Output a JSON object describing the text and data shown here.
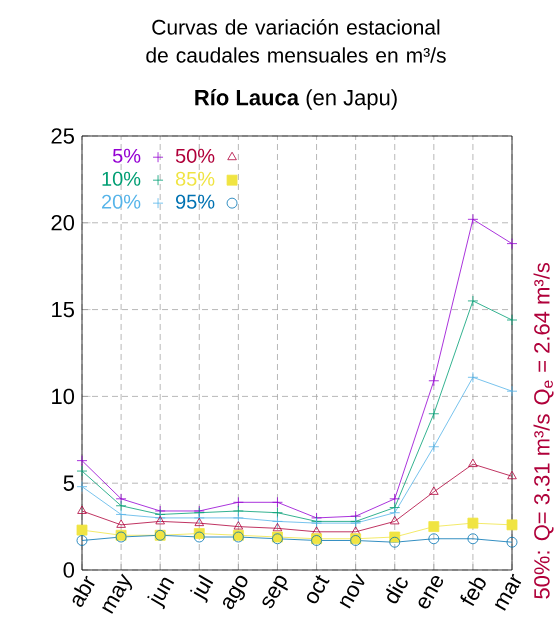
{
  "chart_data": {
    "type": "line",
    "title": "Curvas de variación estacional de caudales mensuales en m³/s",
    "subtitle": "**Río Lauca** (en Japu)",
    "categories": [
      "abr",
      "may",
      "jun",
      "jul",
      "ago",
      "sep",
      "oct",
      "nov",
      "dic",
      "ene",
      "feb",
      "mar"
    ],
    "series": [
      {
        "name": "5%",
        "color": "#9400d3",
        "marker": "cross",
        "values": [
          6.3,
          4.1,
          3.4,
          3.4,
          3.9,
          3.9,
          3.0,
          3.1,
          4.1,
          10.9,
          20.2,
          18.8
        ]
      },
      {
        "name": "10%",
        "color": "#009e73",
        "marker": "cross",
        "values": [
          5.7,
          3.7,
          3.2,
          3.3,
          3.4,
          3.3,
          2.8,
          2.8,
          3.6,
          9.0,
          15.5,
          14.4
        ]
      },
      {
        "name": "20%",
        "color": "#56b4e9",
        "marker": "cross",
        "values": [
          4.8,
          3.2,
          3.0,
          3.0,
          3.0,
          2.8,
          2.7,
          2.7,
          3.3,
          7.1,
          11.1,
          10.3
        ]
      },
      {
        "name": "50%",
        "color": "#b0003a",
        "marker": "triangle",
        "values": [
          3.4,
          2.6,
          2.8,
          2.7,
          2.5,
          2.4,
          2.2,
          2.2,
          2.8,
          4.5,
          6.1,
          5.4
        ]
      },
      {
        "name": "85%",
        "color": "#f0e442",
        "marker": "square",
        "values": [
          2.3,
          2.0,
          2.0,
          2.1,
          2.0,
          1.9,
          1.8,
          1.8,
          1.9,
          2.5,
          2.7,
          2.6
        ]
      },
      {
        "name": "95%",
        "color": "#0072b2",
        "marker": "circle",
        "values": [
          1.7,
          1.9,
          2.0,
          1.9,
          1.9,
          1.8,
          1.7,
          1.7,
          1.6,
          1.8,
          1.8,
          1.6
        ]
      }
    ],
    "ylim": [
      0,
      25
    ],
    "yticks": [
      0,
      5,
      10,
      15,
      20,
      25
    ],
    "grid": true,
    "legend": "top left",
    "annotations": [
      "50%: Q= 3.31 m³/s",
      "Q$_{e}$ = 2.64 m³/s"
    ]
  }
}
